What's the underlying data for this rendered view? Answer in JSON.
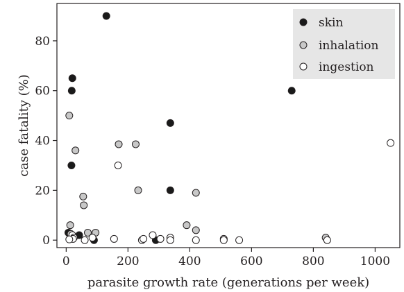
{
  "chart_data": {
    "type": "scatter",
    "title": "",
    "xlabel": "parasite growth rate (generations per week)",
    "ylabel": "case fatality (%)",
    "xlim": [
      -30,
      1080
    ],
    "ylim": [
      -3,
      95
    ],
    "x_ticks": [
      0,
      200,
      400,
      600,
      800,
      1000
    ],
    "x_tick_labels": [
      "0",
      "200",
      "400",
      "600",
      "800",
      "1000"
    ],
    "y_ticks": [
      0,
      20,
      40,
      60,
      80
    ],
    "y_tick_labels": [
      "0",
      "20",
      "40",
      "60",
      "80"
    ],
    "grid": false,
    "legend_position": "top-right",
    "series": [
      {
        "name": "skin",
        "color": "#1a1a1a",
        "points": [
          [
            130,
            90
          ],
          [
            20,
            65
          ],
          [
            18,
            60
          ],
          [
            730,
            60
          ],
          [
            337,
            47
          ],
          [
            17,
            30
          ],
          [
            337,
            20
          ],
          [
            7,
            3
          ],
          [
            42,
            2
          ],
          [
            90,
            0
          ],
          [
            290,
            0
          ]
        ]
      },
      {
        "name": "inhalation",
        "color": "#c8c8c8",
        "points": [
          [
            10,
            50
          ],
          [
            30,
            36
          ],
          [
            170,
            38.5
          ],
          [
            225,
            38.5
          ],
          [
            233,
            20
          ],
          [
            420,
            19
          ],
          [
            55,
            17.5
          ],
          [
            57,
            14
          ],
          [
            13,
            6
          ],
          [
            390,
            6
          ],
          [
            420,
            4
          ],
          [
            15,
            2.5
          ],
          [
            70,
            3
          ],
          [
            95,
            3
          ],
          [
            840,
            1
          ]
        ]
      },
      {
        "name": "ingestion",
        "color": "#ffffff",
        "points": [
          [
            1050,
            39
          ],
          [
            168,
            30
          ],
          [
            20,
            2
          ],
          [
            25,
            1
          ],
          [
            22,
            0.5
          ],
          [
            10,
            0.3
          ],
          [
            60,
            0
          ],
          [
            85,
            1
          ],
          [
            155,
            0.5
          ],
          [
            245,
            0
          ],
          [
            250,
            0.5
          ],
          [
            280,
            2
          ],
          [
            305,
            0.5
          ],
          [
            337,
            1
          ],
          [
            337,
            0
          ],
          [
            420,
            0
          ],
          [
            510,
            0.5
          ],
          [
            510,
            0
          ],
          [
            560,
            0
          ],
          [
            845,
            0
          ]
        ]
      }
    ]
  }
}
